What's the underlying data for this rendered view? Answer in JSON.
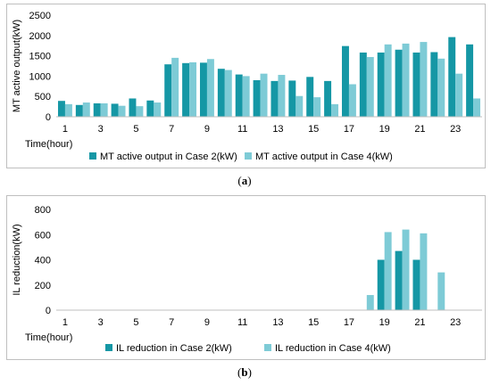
{
  "panels": [
    {
      "label_prefix": "(",
      "label_letter": "a",
      "label_suffix": ")"
    },
    {
      "label_prefix": "(",
      "label_letter": "b",
      "label_suffix": ")"
    }
  ],
  "colors": {
    "case2": "#1597a5",
    "case4": "#7ecbd6",
    "axis": "#bfbfbf"
  },
  "chart_data": [
    {
      "type": "bar",
      "xlabel": "Time(hour)",
      "ylabel": "MT active output(kW)",
      "ylim": [
        0,
        2500
      ],
      "yticks": [
        0,
        500,
        1000,
        1500,
        2000,
        2500
      ],
      "x": [
        1,
        2,
        3,
        4,
        5,
        6,
        7,
        8,
        9,
        10,
        11,
        12,
        13,
        14,
        15,
        16,
        17,
        18,
        19,
        20,
        21,
        22,
        23,
        24
      ],
      "xtick_labels": [
        "1",
        "",
        "3",
        "",
        "5",
        "",
        "7",
        "",
        "9",
        "",
        "11",
        "",
        "13",
        "",
        "15",
        "",
        "17",
        "",
        "19",
        "",
        "21",
        "",
        "23",
        ""
      ],
      "legend_position": "bottom",
      "series": [
        {
          "name": "MT active output in Case 2(kW)",
          "color": "#1597a5",
          "values": [
            390,
            290,
            330,
            320,
            450,
            400,
            1290,
            1320,
            1330,
            1180,
            1040,
            900,
            880,
            890,
            980,
            880,
            1740,
            1580,
            1580,
            1650,
            1580,
            1590,
            1960,
            1780
          ]
        },
        {
          "name": "MT active output in Case 4(kW)",
          "color": "#7ecbd6",
          "values": [
            310,
            350,
            330,
            270,
            260,
            350,
            1450,
            1340,
            1420,
            1150,
            1000,
            1060,
            1030,
            510,
            480,
            310,
            800,
            1470,
            1780,
            1800,
            1840,
            1430,
            1060,
            450
          ]
        }
      ]
    },
    {
      "type": "bar",
      "xlabel": "Time(hour)",
      "ylabel": "IL reduction(kW)",
      "ylim": [
        0,
        800
      ],
      "yticks": [
        0,
        200,
        400,
        600,
        800
      ],
      "x": [
        1,
        2,
        3,
        4,
        5,
        6,
        7,
        8,
        9,
        10,
        11,
        12,
        13,
        14,
        15,
        16,
        17,
        18,
        19,
        20,
        21,
        22,
        23,
        24
      ],
      "xtick_labels": [
        "1",
        "",
        "3",
        "",
        "5",
        "",
        "7",
        "",
        "9",
        "",
        "11",
        "",
        "13",
        "",
        "15",
        "",
        "17",
        "",
        "19",
        "",
        "21",
        "",
        "23",
        ""
      ],
      "legend_position": "bottom",
      "series": [
        {
          "name": "IL reduction in Case 2(kW)",
          "color": "#1597a5",
          "values": [
            0,
            0,
            0,
            0,
            0,
            0,
            0,
            0,
            0,
            0,
            0,
            0,
            0,
            0,
            0,
            0,
            0,
            0,
            400,
            470,
            400,
            0,
            0,
            0
          ]
        },
        {
          "name": "IL reduction in Case 4(kW)",
          "color": "#7ecbd6",
          "values": [
            0,
            0,
            0,
            0,
            0,
            0,
            0,
            0,
            0,
            0,
            0,
            0,
            0,
            0,
            0,
            0,
            0,
            120,
            620,
            640,
            610,
            300,
            0,
            0
          ]
        }
      ]
    }
  ]
}
